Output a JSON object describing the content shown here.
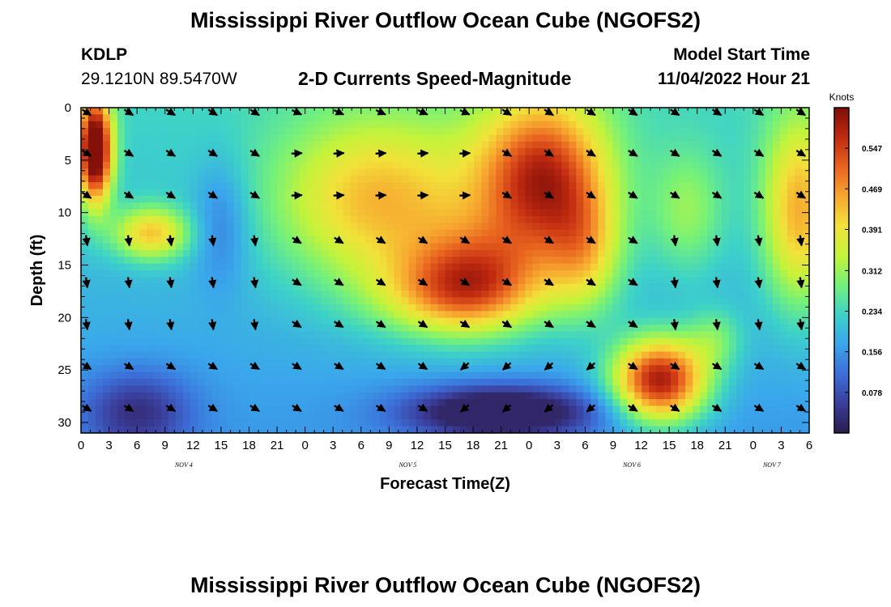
{
  "header": {
    "title": "Mississippi River Outflow Ocean Cube (NGOFS2)",
    "station_id": "KDLP",
    "station_coords": "29.1210N  89.5470W",
    "plot_title": "2-D Currents Speed-Magnitude",
    "model_start_label": "Model Start Time",
    "model_start_time": "11/04/2022 Hour 21"
  },
  "footer": {
    "title": "Mississippi River Outflow Ocean Cube (NGOFS2)"
  },
  "chart_data": {
    "type": "heatmap",
    "title": "2-D Currents Speed-Magnitude",
    "xlabel": "Forecast Time(Z)",
    "ylabel": "Depth (ft)",
    "x_range_hours": [
      0,
      78
    ],
    "ylim": [
      0,
      31
    ],
    "x_ticks": [
      "0",
      "3",
      "6",
      "9",
      "12",
      "15",
      "18",
      "21",
      "0",
      "3",
      "6",
      "9",
      "12",
      "15",
      "18",
      "21",
      "0",
      "3",
      "6",
      "9",
      "12",
      "15",
      "18",
      "21",
      "0",
      "3",
      "6"
    ],
    "y_ticks": [
      0,
      5,
      10,
      15,
      20,
      25,
      30
    ],
    "date_labels": [
      {
        "label": "NOV 4",
        "hour": 11
      },
      {
        "label": "NOV 5",
        "hour": 35
      },
      {
        "label": "NOV 6",
        "hour": 59
      },
      {
        "label": "NOV 7",
        "hour": 74
      }
    ],
    "colorbar": {
      "title": "Knots",
      "min": 0.0,
      "max": 0.625,
      "ticks": [
        "0.547",
        "0.469",
        "0.391",
        "0.312",
        "0.234",
        "0.156",
        "0.078"
      ],
      "stops": [
        "#2b1b4e",
        "#3b3e9c",
        "#3c6fd8",
        "#3aa5ec",
        "#3dd2c8",
        "#74f17a",
        "#c4f33a",
        "#f2e23a",
        "#f7a72f",
        "#e8631f",
        "#c02a10",
        "#7e0e08"
      ]
    },
    "vector_depths": [
      0.3,
      4.2,
      8.2,
      12.5,
      16.5,
      20.5,
      24.5,
      28.5
    ],
    "vector_hours": [
      0,
      4.5,
      9,
      13.5,
      18,
      22.5,
      27,
      31.5,
      36,
      40.5,
      45,
      49.5,
      54,
      58.5,
      63,
      67.5,
      72,
      76.5
    ],
    "speed_blobs": [
      {
        "hour": 1.5,
        "depth": 4,
        "sigma_h": 1.8,
        "sigma_d": 5,
        "amp": 0.5
      },
      {
        "hour": 7.5,
        "depth": 12,
        "sigma_h": 4,
        "sigma_d": 2.5,
        "amp": 0.22
      },
      {
        "hour": 32,
        "depth": 9,
        "sigma_h": 11,
        "sigma_d": 8,
        "amp": 0.23
      },
      {
        "hour": 40,
        "depth": 18,
        "sigma_h": 9,
        "sigma_d": 4,
        "amp": 0.16
      },
      {
        "hour": 49.5,
        "depth": 7,
        "sigma_h": 7,
        "sigma_d": 8,
        "amp": 0.36
      },
      {
        "hour": 42,
        "depth": 16,
        "sigma_h": 7,
        "sigma_d": 5,
        "amp": 0.2
      },
      {
        "hour": 54,
        "depth": 14,
        "sigma_h": 4,
        "sigma_d": 6,
        "amp": 0.15
      },
      {
        "hour": 62,
        "depth": 26,
        "sigma_h": 5,
        "sigma_d": 4,
        "amp": 0.42
      },
      {
        "hour": 65,
        "depth": 10,
        "sigma_h": 4,
        "sigma_d": 6,
        "amp": 0.1
      },
      {
        "hour": 77,
        "depth": 10,
        "sigma_h": 4,
        "sigma_d": 9,
        "amp": 0.24
      },
      {
        "hour": 68,
        "depth": 22,
        "sigma_h": 3,
        "sigma_d": 3,
        "amp": 0.09
      },
      {
        "hour": 15,
        "depth": 11,
        "sigma_h": 3,
        "sigma_d": 6,
        "amp": -0.08
      },
      {
        "hour": 6,
        "depth": 29,
        "sigma_h": 6,
        "sigma_d": 4,
        "amp": -0.13
      },
      {
        "hour": 45,
        "depth": 29,
        "sigma_h": 10,
        "sigma_d": 2.5,
        "amp": -0.23
      }
    ]
  }
}
